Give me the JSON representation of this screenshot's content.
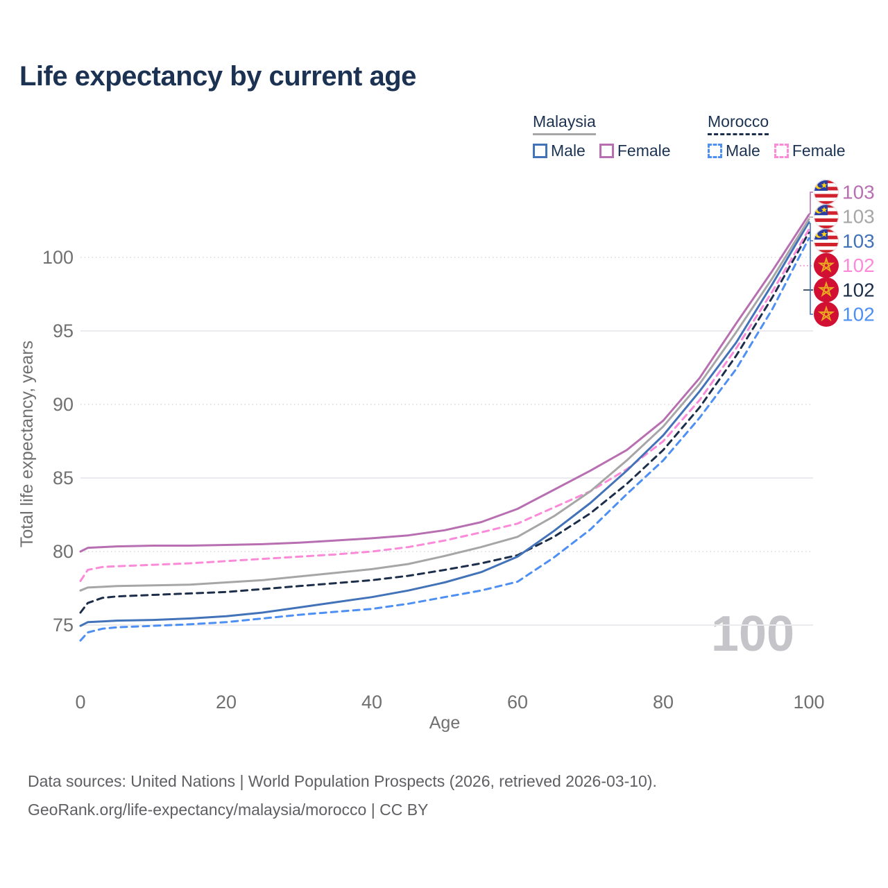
{
  "title": "Life expectancy by current age",
  "watermark": "100",
  "footer": {
    "line1": "Data sources: United Nations | World Population Prospects (2026, retrieved 2026-03-10).",
    "line2": "GeoRank.org/life-expectancy/malaysia/morocco | CC BY"
  },
  "colors": {
    "title_text": "#1c3252",
    "tick_text": "#707070",
    "grid_solid": "#ebebef",
    "grid_dotted": "#d8d8dd",
    "watermark": "#c5c5c9",
    "malaysia_male": "#4272b8",
    "malaysia_female": "#b76fb1",
    "malaysia_total": "#a6a6a6",
    "morocco_male": "#4d8ff2",
    "morocco_female": "#fb8ad9",
    "morocco_total": "#1c2e4a"
  },
  "legend": {
    "groups": [
      {
        "name": "Malaysia",
        "line_style": "solid",
        "items": [
          {
            "label": "Male",
            "color": "#4272b8",
            "box_style": "solid"
          },
          {
            "label": "Female",
            "color": "#b76fb1",
            "box_style": "solid"
          }
        ]
      },
      {
        "name": "Morocco",
        "line_style": "dashed",
        "items": [
          {
            "label": "Male",
            "color": "#4d8ff2",
            "box_style": "dashed"
          },
          {
            "label": "Female",
            "color": "#fb8ad9",
            "box_style": "dashed"
          }
        ]
      }
    ]
  },
  "chart_data": {
    "type": "line",
    "title": "Life expectancy by current age",
    "xlabel": "Age",
    "ylabel": "Total life expectancy, years",
    "xlim": [
      0,
      100
    ],
    "ylim": [
      73.5,
      103.5
    ],
    "x_ticks": [
      0,
      20,
      40,
      60,
      80,
      100
    ],
    "y_ticks": [
      75,
      80,
      85,
      90,
      95,
      100
    ],
    "grid": "horizontal-only",
    "legend_position": "top-right",
    "ages": [
      0,
      1,
      3,
      5,
      10,
      15,
      20,
      25,
      30,
      35,
      40,
      45,
      50,
      55,
      60,
      65,
      70,
      75,
      80,
      85,
      90,
      95,
      100
    ],
    "series": [
      {
        "name": "Morocco Male",
        "country": "Morocco",
        "sex": "Male",
        "color": "#4d8ff2",
        "dash": "dashed",
        "flag": "morocco",
        "end_label": "102",
        "label_row": 5,
        "values": [
          73.95,
          74.5,
          74.75,
          74.85,
          74.95,
          75.05,
          75.2,
          75.45,
          75.7,
          75.9,
          76.1,
          76.45,
          76.9,
          77.35,
          77.95,
          79.6,
          81.5,
          83.9,
          86.2,
          89.1,
          92.4,
          96.5,
          101.3
        ]
      },
      {
        "name": "Morocco",
        "country": "Morocco",
        "sex": "Both",
        "color": "#1c2e4a",
        "dash": "dashed",
        "flag": "morocco",
        "end_label": "102",
        "label_row": 4,
        "values": [
          75.85,
          76.5,
          76.85,
          76.95,
          77.05,
          77.15,
          77.25,
          77.45,
          77.65,
          77.85,
          78.05,
          78.35,
          78.75,
          79.2,
          79.75,
          81.0,
          82.6,
          84.6,
          86.9,
          89.8,
          93.3,
          97.3,
          101.7
        ]
      },
      {
        "name": "Morocco Female",
        "country": "Morocco",
        "sex": "Female",
        "color": "#fb8ad9",
        "dash": "dashed",
        "flag": "morocco",
        "end_label": "102",
        "label_row": 3,
        "values": [
          78.0,
          78.75,
          78.95,
          79.0,
          79.1,
          79.2,
          79.35,
          79.5,
          79.65,
          79.8,
          80.0,
          80.3,
          80.75,
          81.3,
          81.9,
          83.0,
          84.1,
          85.6,
          87.5,
          90.3,
          93.8,
          97.7,
          101.9
        ]
      },
      {
        "name": "Malaysia Male",
        "country": "Malaysia",
        "sex": "Male",
        "color": "#4272b8",
        "dash": "solid",
        "flag": "malaysia",
        "end_label": "103",
        "label_row": 2,
        "values": [
          74.95,
          75.2,
          75.25,
          75.3,
          75.35,
          75.45,
          75.6,
          75.85,
          76.2,
          76.55,
          76.9,
          77.35,
          77.9,
          78.6,
          79.65,
          81.4,
          83.3,
          85.5,
          87.9,
          90.9,
          94.2,
          98.2,
          102.4
        ]
      },
      {
        "name": "Malaysia",
        "country": "Malaysia",
        "sex": "Both",
        "color": "#a6a6a6",
        "dash": "solid",
        "flag": "malaysia",
        "end_label": "103",
        "label_row": 1,
        "values": [
          77.35,
          77.55,
          77.6,
          77.65,
          77.7,
          77.75,
          77.9,
          78.05,
          78.3,
          78.55,
          78.8,
          79.15,
          79.7,
          80.3,
          81.0,
          82.4,
          84.1,
          86.2,
          88.5,
          91.4,
          94.9,
          98.6,
          102.6
        ]
      },
      {
        "name": "Malaysia Female",
        "country": "Malaysia",
        "sex": "Female",
        "color": "#b76fb1",
        "dash": "solid",
        "flag": "malaysia",
        "end_label": "103",
        "label_row": 0,
        "values": [
          80.0,
          80.25,
          80.3,
          80.35,
          80.4,
          80.4,
          80.45,
          80.5,
          80.6,
          80.75,
          80.9,
          81.1,
          81.45,
          82.0,
          82.9,
          84.2,
          85.5,
          86.9,
          88.9,
          91.8,
          95.5,
          99.1,
          102.9
        ]
      }
    ]
  }
}
